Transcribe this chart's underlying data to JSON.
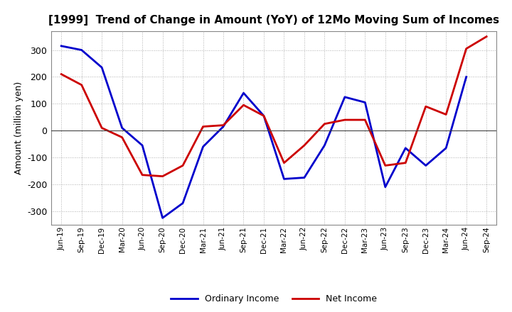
{
  "title": "[1999]  Trend of Change in Amount (YoY) of 12Mo Moving Sum of Incomes",
  "ylabel": "Amount (million yen)",
  "x_labels": [
    "Jun-19",
    "Sep-19",
    "Dec-19",
    "Mar-20",
    "Jun-20",
    "Sep-20",
    "Dec-20",
    "Mar-21",
    "Jun-21",
    "Sep-21",
    "Dec-21",
    "Mar-22",
    "Jun-22",
    "Sep-22",
    "Dec-22",
    "Mar-23",
    "Jun-23",
    "Sep-23",
    "Dec-23",
    "Mar-24",
    "Jun-24",
    "Sep-24"
  ],
  "ordinary_income": [
    315,
    300,
    235,
    10,
    -55,
    -325,
    -270,
    -60,
    15,
    140,
    55,
    -180,
    -175,
    -55,
    125,
    105,
    -210,
    -65,
    -130,
    -65,
    200,
    null
  ],
  "net_income": [
    210,
    170,
    10,
    -25,
    -165,
    -170,
    -130,
    15,
    20,
    95,
    55,
    -120,
    -55,
    25,
    40,
    40,
    -130,
    -120,
    90,
    60,
    305,
    350
  ],
  "ordinary_color": "#0000cc",
  "net_color": "#cc0000",
  "bg_color": "#ffffff",
  "plot_bg_color": "#ffffff",
  "grid_color": "#b0b0b0",
  "ylim": [
    -350,
    370
  ],
  "yticks": [
    -300,
    -200,
    -100,
    0,
    100,
    200,
    300
  ],
  "legend_ordinary": "Ordinary Income",
  "legend_net": "Net Income",
  "line_width": 2.0,
  "title_fontsize": 11,
  "ylabel_fontsize": 9,
  "xtick_fontsize": 7.5,
  "ytick_fontsize": 9,
  "legend_fontsize": 9
}
